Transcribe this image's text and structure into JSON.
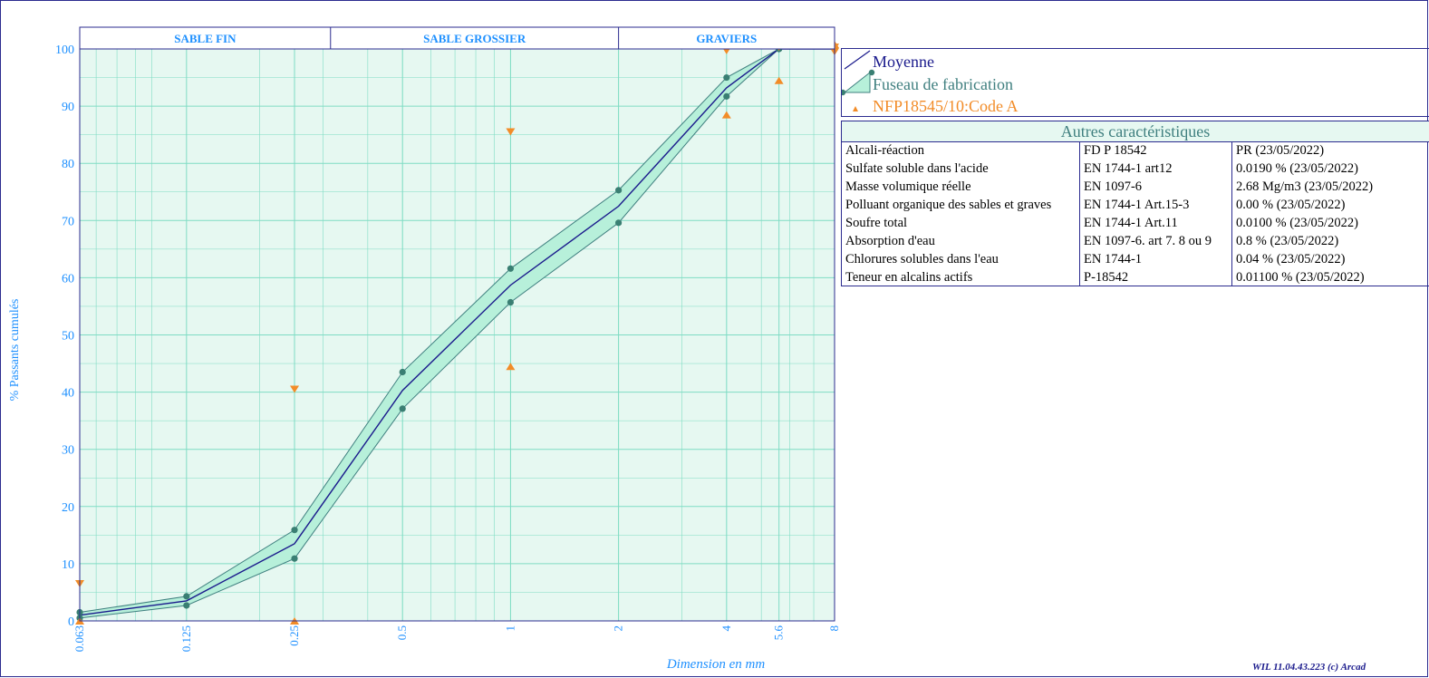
{
  "chart_data": {
    "type": "line",
    "xscale": "log",
    "x_ticks": [
      0.063,
      0.125,
      0.25,
      0.5,
      1,
      2,
      4,
      5.6,
      8
    ],
    "x_tick_labels": [
      "0.063",
      "0.125",
      "0.25",
      "0.5",
      "1",
      "2",
      "4",
      "5.6",
      "8"
    ],
    "xlim": [
      0.063,
      8
    ],
    "ylim": [
      0,
      100
    ],
    "y_ticks": [
      0,
      10,
      20,
      30,
      40,
      50,
      60,
      70,
      80,
      90,
      100
    ],
    "xlabel": "Dimension en mm",
    "ylabel": "% Passants cumulés",
    "grid": true,
    "zones": [
      {
        "label": "SABLE FIN",
        "from": 0.063,
        "to": 0.315
      },
      {
        "label": "SABLE GROSSIER",
        "from": 0.315,
        "to": 2
      },
      {
        "label": "GRAVIERS",
        "from": 2,
        "to": 8
      }
    ],
    "series": [
      {
        "name": "Moyenne",
        "x": [
          0.063,
          0.125,
          0.25,
          0.5,
          1,
          2,
          4,
          5.6,
          8
        ],
        "values": [
          1.0,
          3.5,
          13.5,
          40.3,
          58.7,
          72.5,
          93.2,
          100,
          100
        ]
      },
      {
        "name": "Fuseau de fabrication",
        "x": [
          0.063,
          0.125,
          0.25,
          0.5,
          1,
          2,
          4,
          5.6,
          8
        ],
        "upper": [
          1.5,
          4.3,
          15.9,
          43.5,
          61.6,
          75.3,
          95.0,
          100,
          100
        ],
        "lower": [
          0.5,
          2.7,
          10.9,
          37.1,
          55.7,
          69.6,
          91.7,
          100,
          100
        ]
      },
      {
        "name": "NFP18545/10:Code A",
        "upper_limits": [
          {
            "x": 0.063,
            "y": 6.5
          },
          {
            "x": 0.25,
            "y": 40.5
          },
          {
            "x": 1,
            "y": 85.5
          },
          {
            "x": 4,
            "y": 99.7
          },
          {
            "x": 5.6,
            "y": 100.3
          },
          {
            "x": 8,
            "y": 100.3
          },
          {
            "x": 8,
            "y": 99.5
          }
        ],
        "lower_limits": [
          {
            "x": 0.063,
            "y": 0
          },
          {
            "x": 0.25,
            "y": 0
          },
          {
            "x": 1,
            "y": 44.5
          },
          {
            "x": 4,
            "y": 88.5
          },
          {
            "x": 5.6,
            "y": 94.5
          },
          {
            "x": 8,
            "y": 100.8
          }
        ]
      }
    ]
  },
  "colors": {
    "frame": "#2b2b8f",
    "plot_bg": "#e6f8f1",
    "grid": "#7fdcc4",
    "axis_text": "#1e90ff",
    "zone_text": "#1e90ff",
    "mean_line": "#1a1a8c",
    "envelope_line": "#3f7f7f",
    "envelope_fill": "#b7f0da",
    "envelope_marker": "#3a7f73",
    "spec_marker": "#f28c28"
  },
  "legend": {
    "moyenne": "Moyenne",
    "fuseau": "Fuseau de fabrication",
    "nfp": "NFP18545/10:Code A"
  },
  "caracteristiques": {
    "title": "Autres caractéristiques",
    "rows": [
      {
        "name": "Alcali-réaction",
        "norme": "FD P 18542",
        "valeur": "PR  (23/05/2022)"
      },
      {
        "name": "Sulfate soluble dans l'acide",
        "norme": "EN 1744-1 art12",
        "valeur": "0.0190 %  (23/05/2022)"
      },
      {
        "name": "Masse volumique réelle",
        "norme": "EN 1097-6",
        "valeur": "2.68 Mg/m3  (23/05/2022)"
      },
      {
        "name": "Polluant organique des sables et graves",
        "norme": "EN 1744-1 Art.15-3",
        "valeur": "0.00 %  (23/05/2022)"
      },
      {
        "name": "Soufre total",
        "norme": "EN 1744-1 Art.11",
        "valeur": "0.0100 %  (23/05/2022)"
      },
      {
        "name": "Absorption d'eau",
        "norme": "EN 1097-6. art 7. 8 ou 9",
        "valeur": "0.8 %  (23/05/2022)"
      },
      {
        "name": "Chlorures solubles dans l'eau",
        "norme": "EN 1744-1",
        "valeur": "0.04 %  (23/05/2022)"
      },
      {
        "name": "Teneur en alcalins actifs",
        "norme": "P-18542",
        "valeur": "0.01100 %  (23/05/2022)"
      }
    ]
  },
  "footer": "WIL 11.04.43.223 (c) Arcad"
}
